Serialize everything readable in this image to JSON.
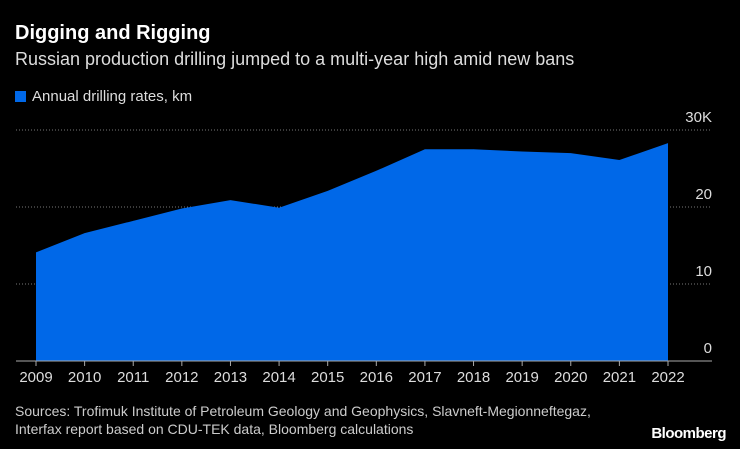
{
  "title": "Digging and Rigging",
  "subtitle": "Russian production drilling jumped to a multi-year high amid new bans",
  "source": "Sources: Trofimuk Institute of Petroleum Geology and Geophysics, Slavneft-Megionneftegaz, Interfax report based on CDU-TEK data, Bloomberg calculations",
  "logo": "Bloomberg",
  "chart_data": {
    "type": "area",
    "legend": [
      "Annual drilling rates, km"
    ],
    "legend_placement": "top-left",
    "color": "#0068e8",
    "x": [
      "2009",
      "2010",
      "2011",
      "2012",
      "2013",
      "2014",
      "2015",
      "2016",
      "2017",
      "2018",
      "2019",
      "2020",
      "2021",
      "2022"
    ],
    "series": [
      {
        "name": "Annual drilling rates, km",
        "values": [
          14.1,
          16.6,
          18.2,
          19.8,
          20.9,
          19.9,
          22.1,
          24.7,
          27.5,
          27.5,
          27.2,
          27.0,
          26.1,
          28.3
        ]
      }
    ],
    "y_ticks": [
      {
        "v": 0,
        "label": "0"
      },
      {
        "v": 10,
        "label": "10"
      },
      {
        "v": 20,
        "label": "20"
      },
      {
        "v": 30,
        "label": "30K"
      }
    ],
    "ylim": [
      0,
      30
    ],
    "grid": true,
    "y_axis_side": "right"
  }
}
